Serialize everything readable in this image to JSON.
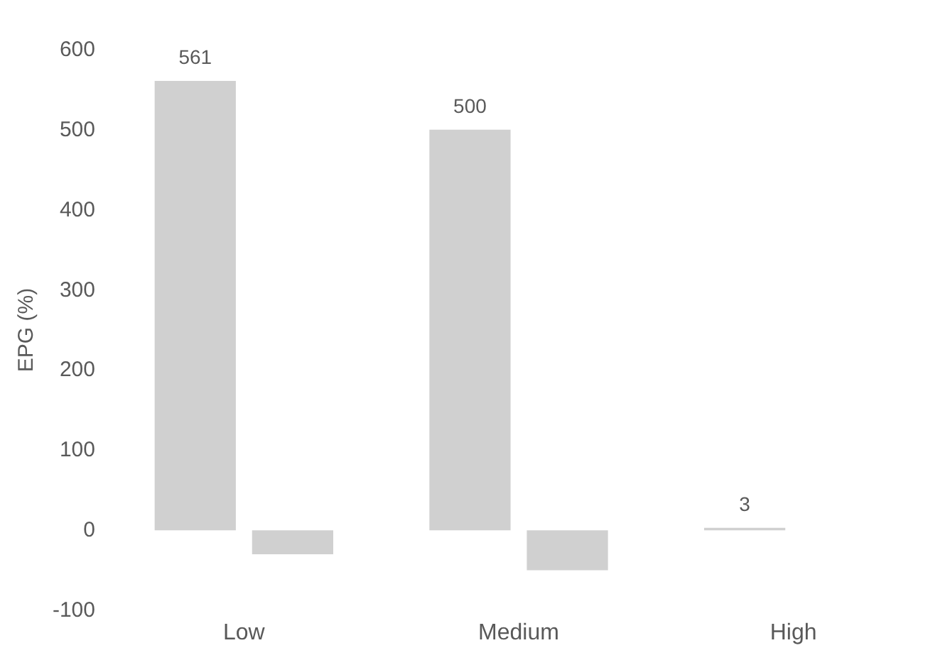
{
  "chart_data": {
    "type": "bar",
    "ylabel": "EPG (%)",
    "categories": [
      "Low",
      "Medium",
      "High"
    ],
    "series": [
      {
        "color": "#d0d0d0",
        "values": [
          561,
          500,
          3
        ],
        "value_labels": [
          "561",
          "500",
          "3"
        ]
      },
      {
        "color": "#d0d0d0",
        "values": [
          -30,
          -50,
          null
        ]
      }
    ],
    "ylim": [
      -100,
      600
    ],
    "yticks": [
      -100,
      0,
      100,
      200,
      300,
      400,
      500,
      600
    ]
  }
}
